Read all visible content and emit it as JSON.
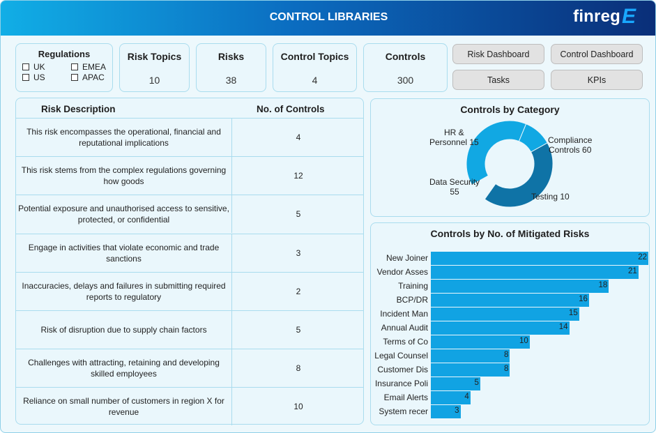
{
  "header": {
    "title": "CONTROL LIBRARIES",
    "logo_text": "finreg",
    "logo_mark": "E"
  },
  "regulations": {
    "title": "Regulations",
    "options": [
      "UK",
      "EMEA",
      "US",
      "APAC"
    ]
  },
  "kpis": [
    {
      "label": "Risk Topics",
      "value": "10"
    },
    {
      "label": "Risks",
      "value": "38"
    },
    {
      "label": "Control Topics",
      "value": "4"
    },
    {
      "label": "Controls",
      "value": "300"
    }
  ],
  "nav": {
    "risk_dashboard": "Risk Dashboard",
    "control_dashboard": "Control Dashboard",
    "tasks": "Tasks",
    "kpis": "KPIs"
  },
  "risk_table": {
    "headers": {
      "description": "Risk Description",
      "count": "No. of Controls"
    },
    "rows": [
      {
        "description": "This risk encompasses the operational, financial and reputational implications",
        "count": "4"
      },
      {
        "description": "This risk stems from the complex regulations governing how goods",
        "count": "12"
      },
      {
        "description": "Potential exposure and unauthorised access to sensitive, protected, or confidential",
        "count": "5"
      },
      {
        "description": "Engage in activities that violate economic and trade sanctions",
        "count": "3"
      },
      {
        "description": "Inaccuracies, delays and failures in submitting required reports to regulatory",
        "count": "2"
      },
      {
        "description": "Risk of disruption due to supply chain factors",
        "count": "5"
      },
      {
        "description": "Challenges with attracting, retaining and developing skilled employees",
        "count": "8"
      },
      {
        "description": "Reliance on small number of customers in region X for revenue",
        "count": "10"
      }
    ]
  },
  "chart_data": [
    {
      "type": "pie",
      "title": "Controls by Category",
      "labels": [
        "HR & Personnel",
        "Compliance Controls",
        "Testing",
        "Data Security"
      ],
      "values": [
        15,
        60,
        10,
        55
      ],
      "colors": [
        "#11a8e3",
        "#0f73a6",
        "#11a8e3",
        "#11a8e3"
      ],
      "display_labels": [
        "HR &\nPersonnel 15",
        "Compliance\nControls 60",
        "Testing 10",
        "Data Security\n55"
      ]
    },
    {
      "type": "bar",
      "title": "Controls by No. of Mitigated Risks",
      "orientation": "horizontal",
      "categories": [
        "New Joiner",
        "Vendor Asses",
        "Training",
        "BCP/DR",
        "Incident Man",
        "Annual Audit",
        "Terms of Co",
        "Legal Counsel",
        "Customer Dis",
        "Insurance Poli",
        "Email Alerts",
        "System recer"
      ],
      "values": [
        22,
        21,
        18,
        16,
        15,
        14,
        10,
        8,
        8,
        5,
        4,
        3
      ],
      "color": "#11a3e3"
    }
  ]
}
